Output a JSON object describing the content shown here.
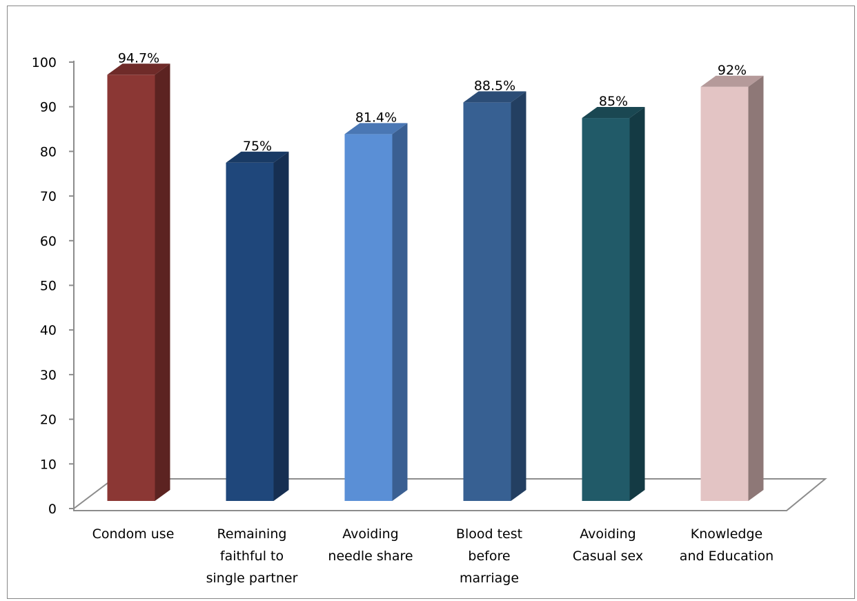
{
  "chart_data": {
    "type": "bar",
    "style": "3d-column",
    "categories": [
      [
        "Condom use"
      ],
      [
        "Remaining",
        "faithful to",
        "single partner"
      ],
      [
        "Avoiding",
        "needle share"
      ],
      [
        "Blood test",
        "before",
        "marriage"
      ],
      [
        "Avoiding",
        "Casual sex"
      ],
      [
        "Knowledge",
        "and Education"
      ]
    ],
    "values": [
      94.7,
      75,
      81.4,
      88.5,
      85,
      92
    ],
    "data_labels": [
      "94.7%",
      "75%",
      "81.4%",
      "88.5%",
      "85%",
      "92%"
    ],
    "yticks": [
      "0",
      "10",
      "20",
      "30",
      "40",
      "50",
      "60",
      "70",
      "80",
      "90",
      "100"
    ],
    "ylim": [
      0,
      100
    ],
    "grid": false,
    "legend": "none",
    "colors": [
      {
        "front": "#8b3734",
        "side": "#5c2321",
        "top": "#6f2b29"
      },
      {
        "front": "#1f477b",
        "side": "#162f52",
        "top": "#193a64"
      },
      {
        "front": "#5a8fd6",
        "side": "#3a5f92",
        "top": "#4a77b4"
      },
      {
        "front": "#376092",
        "side": "#233f61",
        "top": "#2c4d76"
      },
      {
        "front": "#215a68",
        "side": "#143a44",
        "top": "#1a4752"
      },
      {
        "front": "#e3c4c4",
        "side": "#8e7877",
        "top": "#b59a9a"
      }
    ],
    "floor_color": "#8c8c8c",
    "axis_color": "#8c8c8c"
  }
}
